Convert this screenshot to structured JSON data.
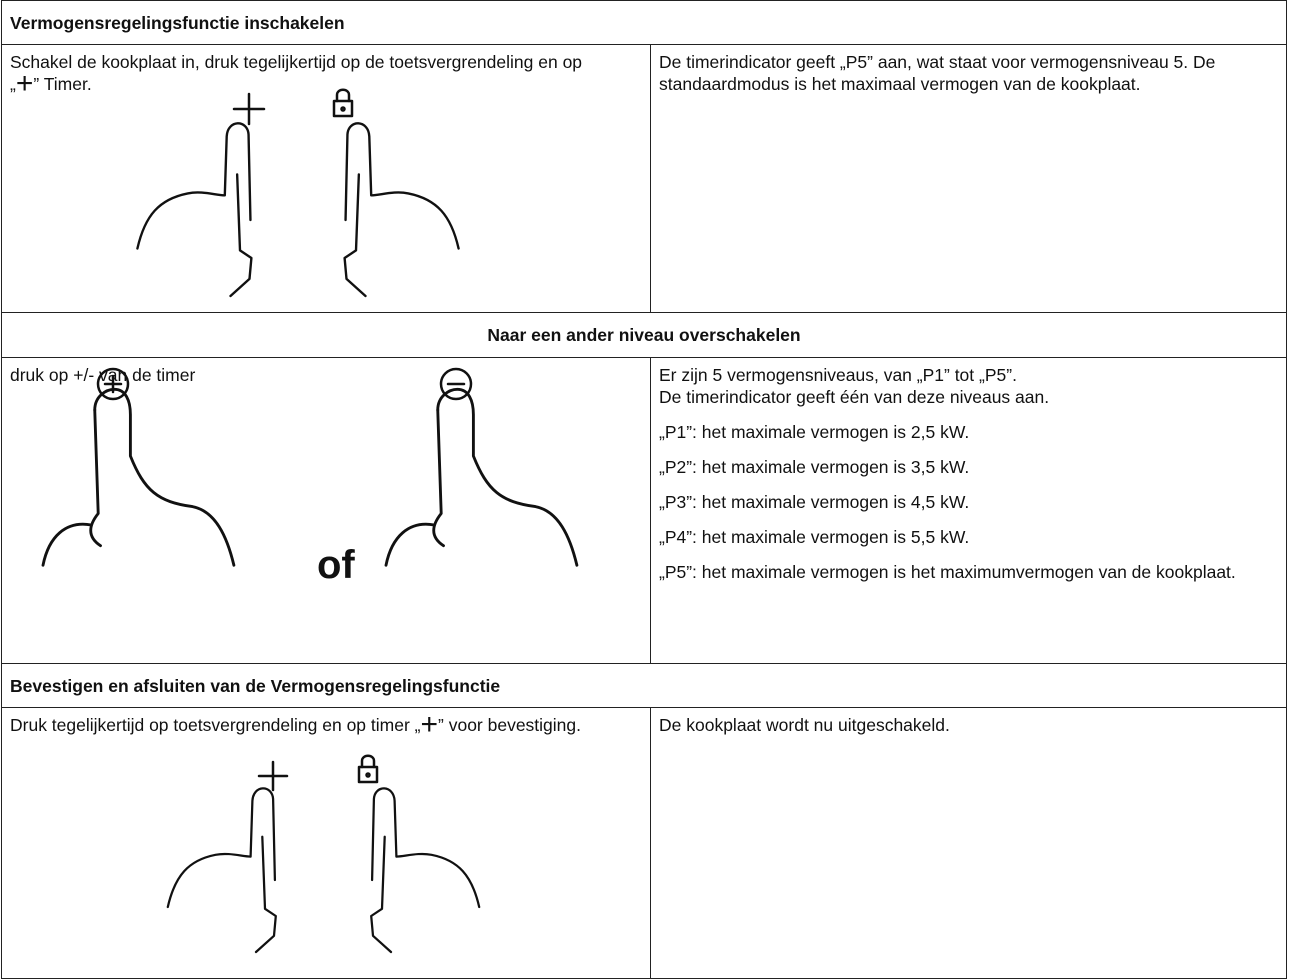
{
  "sections": [
    {
      "title": "Vermogensregelingsfunctie inschakelen",
      "left": {
        "text_before": "Schakel de kookplaat in, druk tegelijkertijd op de toetsvergrendeling en op „",
        "symbol": "+",
        "text_after": "” Timer."
      },
      "right": [
        "De timerindicator geeft „P5” aan, wat staat voor vermogensniveau 5. De standaardmodus is het maximaal vermogen van de kookplaat."
      ]
    },
    {
      "title": "Naar een ander niveau overschakelen",
      "left": {
        "text": "druk op +/- van de timer",
        "or": "of"
      },
      "right": [
        "Er zijn 5 vermogensniveaus, van „P1” tot „P5”.",
        "De timerindicator geeft één van deze niveaus aan.",
        "„P1”: het maximale vermogen is 2,5 kW.",
        "„P2”: het maximale vermogen is 3,5 kW.",
        "„P3”: het maximale vermogen is 4,5 kW.",
        "„P4”: het maximale vermogen is 5,5 kW.",
        "„P5”: het maximale vermogen is het maximumvermogen van de kookplaat."
      ]
    },
    {
      "title": "Bevestigen en afsluiten van de Vermogensregelingsfunctie",
      "left": {
        "text_before": "Druk tegelijkertijd op toetsvergrendeling en op timer „",
        "symbol": "+",
        "text_after": "” voor bevestiging."
      },
      "right": [
        "De kookplaat wordt nu uitgeschakeld."
      ]
    }
  ]
}
